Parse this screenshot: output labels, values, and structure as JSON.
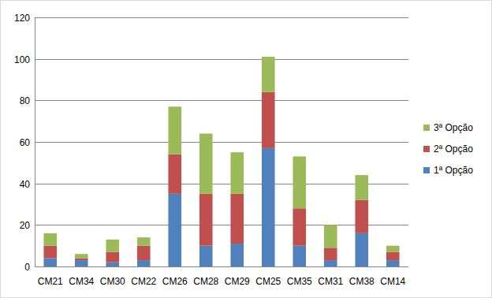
{
  "chart_data": {
    "type": "bar",
    "stacked": true,
    "grid": true,
    "legend": "right",
    "categories": [
      "CM21",
      "CM34",
      "CM30",
      "CM22",
      "CM26",
      "CM28",
      "CM29",
      "CM25",
      "CM35",
      "CM31",
      "CM38",
      "CM14"
    ],
    "series": [
      {
        "name": "1ª Opção",
        "color": "#4f81bd",
        "values": [
          4,
          3,
          2,
          3,
          35,
          10,
          11,
          57,
          10,
          3,
          16,
          3
        ]
      },
      {
        "name": "2ª Opção",
        "color": "#c0504d",
        "values": [
          6,
          1,
          5,
          7,
          19,
          25,
          24,
          27,
          18,
          6,
          16,
          4
        ]
      },
      {
        "name": "3ª Opção",
        "color": "#9bbb59",
        "values": [
          6,
          2,
          6,
          4,
          23,
          29,
          20,
          17,
          25,
          11,
          12,
          3
        ]
      }
    ],
    "ylim": [
      0,
      120
    ],
    "yticks": [
      0,
      20,
      40,
      60,
      80,
      100,
      120
    ]
  }
}
